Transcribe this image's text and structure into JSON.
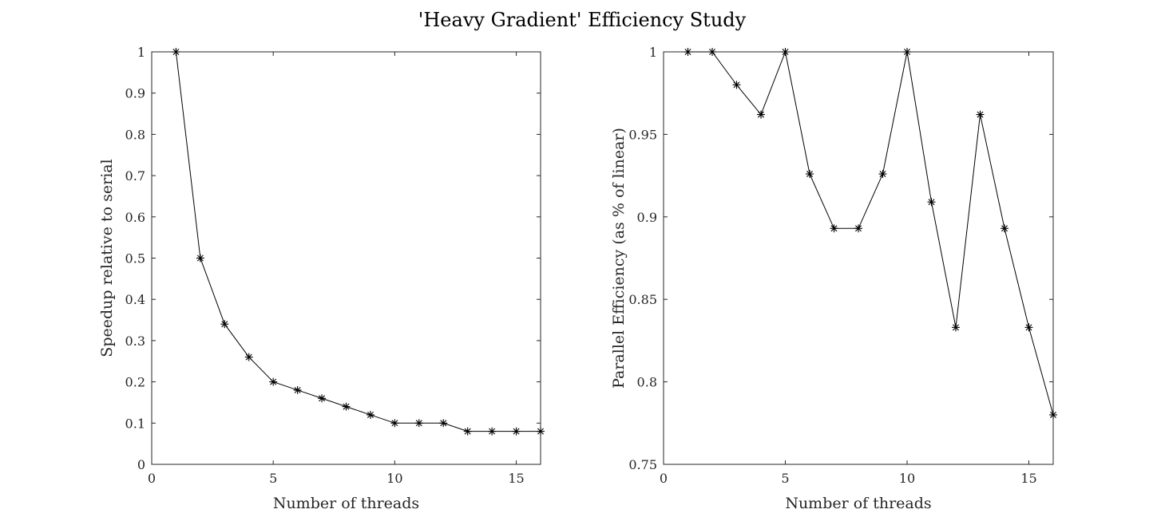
{
  "figure": {
    "title": "'Heavy Gradient' Efficiency Study"
  },
  "chart_data": [
    {
      "type": "line",
      "title": "",
      "xlabel": "Number of threads",
      "ylabel": "Speedup relative to serial",
      "xlim": [
        0,
        16
      ],
      "ylim": [
        0,
        1
      ],
      "xticks": [
        0,
        5,
        10,
        15
      ],
      "yticks": [
        0,
        0.1,
        0.2,
        0.3,
        0.4,
        0.5,
        0.6,
        0.7,
        0.8,
        0.9,
        1
      ],
      "ytick_labels": [
        "0",
        "0.1",
        "0.2",
        "0.3",
        "0.4",
        "0.5",
        "0.6",
        "0.7",
        "0.8",
        "0.9",
        "1"
      ],
      "grid": false,
      "marker": "asterisk",
      "line_color": "#000000",
      "series": [
        {
          "x": [
            1,
            2,
            3,
            4,
            5,
            6,
            7,
            8,
            9,
            10,
            11,
            12,
            13,
            14,
            15,
            16
          ],
          "values": [
            1.0,
            0.5,
            0.34,
            0.26,
            0.2,
            0.18,
            0.16,
            0.14,
            0.12,
            0.1,
            0.1,
            0.1,
            0.08,
            0.08,
            0.08,
            0.08
          ]
        }
      ]
    },
    {
      "type": "line",
      "title": "",
      "xlabel": "Number of threads",
      "ylabel": "Parallel Efficiency (as % of linear)",
      "xlim": [
        0,
        16
      ],
      "ylim": [
        0.75,
        1
      ],
      "xticks": [
        0,
        5,
        10,
        15
      ],
      "yticks": [
        0.75,
        0.8,
        0.85,
        0.9,
        0.95,
        1
      ],
      "ytick_labels": [
        "0.75",
        "0.8",
        "0.85",
        "0.9",
        "0.95",
        "1"
      ],
      "grid": false,
      "marker": "asterisk",
      "line_color": "#000000",
      "series": [
        {
          "x": [
            1,
            2,
            3,
            4,
            5,
            6,
            7,
            8,
            9,
            10,
            11,
            12,
            13,
            14,
            15,
            16
          ],
          "values": [
            1.0,
            1.0,
            0.98,
            0.962,
            1.0,
            0.926,
            0.893,
            0.893,
            0.926,
            1.0,
            0.909,
            0.833,
            0.962,
            0.893,
            0.833,
            0.78
          ]
        }
      ]
    }
  ]
}
